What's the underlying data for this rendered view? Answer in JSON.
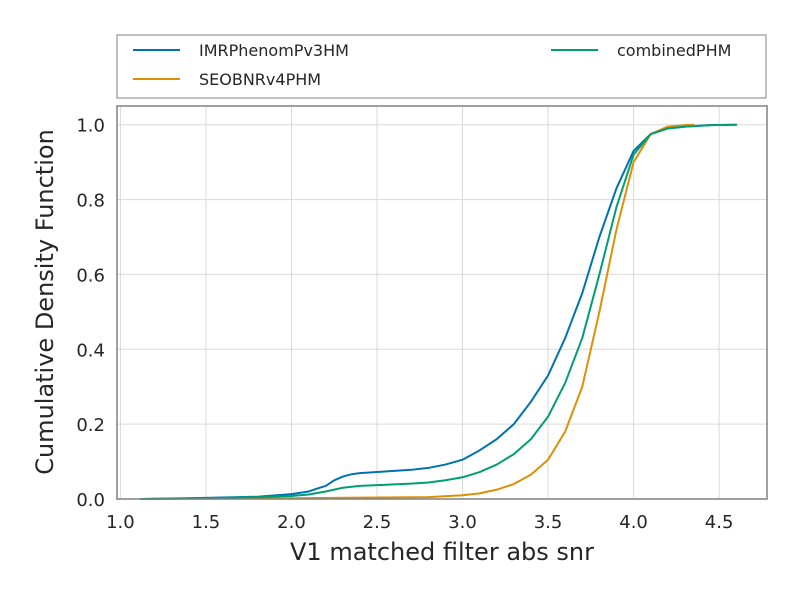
{
  "chart_data": {
    "type": "line",
    "title": "",
    "xlabel": "V1 matched filter abs snr",
    "ylabel": "Cumulative Density Function",
    "xlim": [
      0.98,
      4.78
    ],
    "ylim": [
      0.0,
      1.05
    ],
    "xticks": [
      1.0,
      1.5,
      2.0,
      2.5,
      3.0,
      3.5,
      4.0,
      4.5
    ],
    "xtick_labels": [
      "1.0",
      "1.5",
      "2.0",
      "2.5",
      "3.0",
      "3.5",
      "4.0",
      "4.5"
    ],
    "yticks": [
      0.0,
      0.2,
      0.4,
      0.6,
      0.8,
      1.0
    ],
    "ytick_labels": [
      "0.0",
      "0.2",
      "0.4",
      "0.6",
      "0.8",
      "1.0"
    ],
    "grid": true,
    "legend": {
      "placement": "above-plot",
      "columns": 2
    },
    "series": [
      {
        "name": "IMRPhenomPv3HM",
        "color": "#0072b2",
        "points": [
          [
            1.12,
            0.0
          ],
          [
            1.5,
            0.003
          ],
          [
            1.8,
            0.006
          ],
          [
            2.0,
            0.013
          ],
          [
            2.1,
            0.02
          ],
          [
            2.15,
            0.028
          ],
          [
            2.2,
            0.035
          ],
          [
            2.25,
            0.05
          ],
          [
            2.3,
            0.06
          ],
          [
            2.35,
            0.066
          ],
          [
            2.4,
            0.069
          ],
          [
            2.5,
            0.072
          ],
          [
            2.6,
            0.075
          ],
          [
            2.7,
            0.078
          ],
          [
            2.8,
            0.083
          ],
          [
            2.9,
            0.092
          ],
          [
            3.0,
            0.105
          ],
          [
            3.1,
            0.13
          ],
          [
            3.2,
            0.16
          ],
          [
            3.3,
            0.2
          ],
          [
            3.4,
            0.26
          ],
          [
            3.5,
            0.33
          ],
          [
            3.6,
            0.43
          ],
          [
            3.7,
            0.55
          ],
          [
            3.8,
            0.7
          ],
          [
            3.9,
            0.83
          ],
          [
            4.0,
            0.93
          ],
          [
            4.1,
            0.975
          ],
          [
            4.2,
            0.99
          ],
          [
            4.3,
            0.995
          ],
          [
            4.45,
            0.999
          ],
          [
            4.6,
            1.0
          ]
        ]
      },
      {
        "name": "SEOBNRv4PHM",
        "color": "#de8f05",
        "points": [
          [
            1.12,
            0.0
          ],
          [
            1.5,
            0.001
          ],
          [
            2.0,
            0.002
          ],
          [
            2.5,
            0.004
          ],
          [
            2.8,
            0.005
          ],
          [
            3.0,
            0.01
          ],
          [
            3.1,
            0.015
          ],
          [
            3.2,
            0.025
          ],
          [
            3.3,
            0.04
          ],
          [
            3.4,
            0.065
          ],
          [
            3.5,
            0.105
          ],
          [
            3.6,
            0.18
          ],
          [
            3.7,
            0.3
          ],
          [
            3.8,
            0.5
          ],
          [
            3.9,
            0.72
          ],
          [
            4.0,
            0.9
          ],
          [
            4.1,
            0.975
          ],
          [
            4.2,
            0.995
          ],
          [
            4.3,
            0.999
          ],
          [
            4.35,
            1.0
          ]
        ]
      },
      {
        "name": "combinedPHM",
        "color": "#029e73",
        "points": [
          [
            1.12,
            0.0
          ],
          [
            1.5,
            0.002
          ],
          [
            1.8,
            0.005
          ],
          [
            2.0,
            0.008
          ],
          [
            2.1,
            0.012
          ],
          [
            2.2,
            0.02
          ],
          [
            2.3,
            0.03
          ],
          [
            2.4,
            0.035
          ],
          [
            2.5,
            0.037
          ],
          [
            2.6,
            0.039
          ],
          [
            2.7,
            0.041
          ],
          [
            2.8,
            0.044
          ],
          [
            2.9,
            0.05
          ],
          [
            3.0,
            0.058
          ],
          [
            3.1,
            0.072
          ],
          [
            3.2,
            0.092
          ],
          [
            3.3,
            0.12
          ],
          [
            3.4,
            0.16
          ],
          [
            3.5,
            0.22
          ],
          [
            3.6,
            0.31
          ],
          [
            3.7,
            0.43
          ],
          [
            3.8,
            0.6
          ],
          [
            3.9,
            0.78
          ],
          [
            4.0,
            0.92
          ],
          [
            4.1,
            0.975
          ],
          [
            4.2,
            0.99
          ],
          [
            4.3,
            0.995
          ],
          [
            4.45,
            0.999
          ],
          [
            4.6,
            1.0
          ]
        ]
      }
    ]
  }
}
